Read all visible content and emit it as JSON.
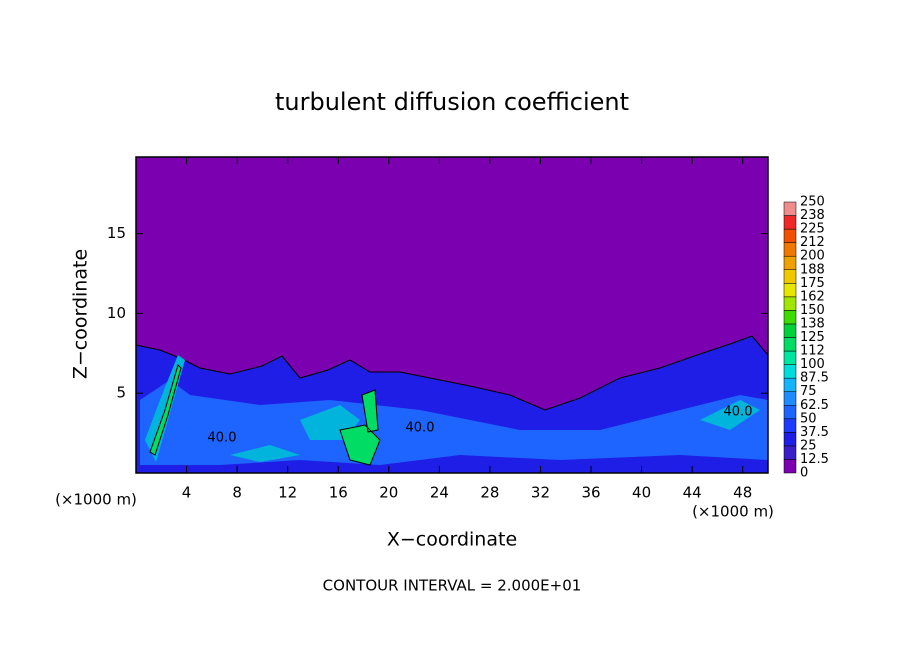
{
  "chart_data": {
    "type": "contour",
    "title": "turbulent diffusion coefficient",
    "x_label": "X−coordinate",
    "y_label": "Z−coordinate",
    "axis_unit_label": "(×1000 m)",
    "footer": "CONTOUR INTERVAL = 2.000E+01",
    "xlim": [
      0,
      50
    ],
    "ylim": [
      0,
      19.8
    ],
    "xticks": [
      4,
      8,
      12,
      16,
      20,
      24,
      28,
      32,
      36,
      40,
      44,
      48
    ],
    "yticks": [
      5,
      10,
      15
    ],
    "contour_labels": [
      "40.0",
      "40.0",
      "40.0"
    ],
    "colorbar_levels": [
      0,
      12.5,
      25,
      37.5,
      50,
      62.5,
      75,
      87.5,
      100,
      112,
      125,
      138,
      150,
      162,
      175,
      188,
      200,
      212,
      225,
      238,
      250
    ],
    "colorbar_colors": [
      "#7b00b0",
      "#3c1ec8",
      "#1e1ee6",
      "#1e3cff",
      "#1e64ff",
      "#1e8cff",
      "#14b4ff",
      "#00dcdc",
      "#00e6a0",
      "#00dc64",
      "#00d23c",
      "#3cdc00",
      "#a0e600",
      "#e6e600",
      "#f0c800",
      "#f0a000",
      "#f07800",
      "#f05000",
      "#f02828",
      "#f08c8c"
    ]
  }
}
